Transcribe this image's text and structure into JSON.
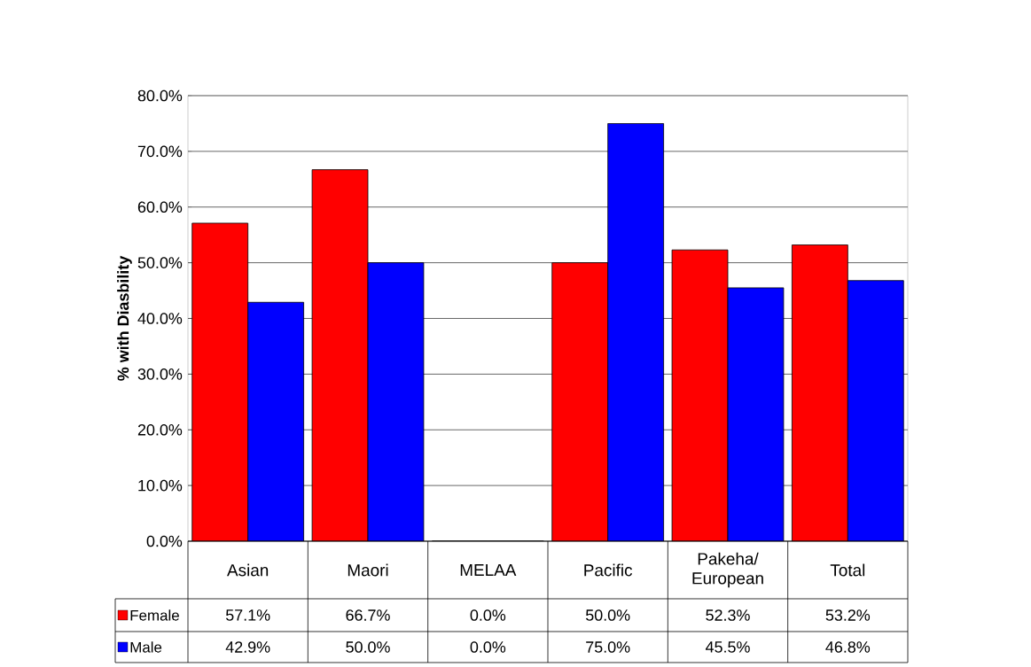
{
  "chart_data": {
    "type": "bar",
    "ylabel": "% with Diasbility",
    "categories": [
      "Asian",
      "Maori",
      "MELAA",
      "Pacific",
      "Pakeha/ European",
      "Total"
    ],
    "series": [
      {
        "name": "Female",
        "color": "#ff0000",
        "values": [
          57.1,
          66.7,
          0.0,
          50.0,
          52.3,
          53.2
        ],
        "value_labels": [
          "57.1%",
          "66.7%",
          "0.0%",
          "50.0%",
          "52.3%",
          "53.2%"
        ]
      },
      {
        "name": "Male",
        "color": "#0000ff",
        "values": [
          42.9,
          50.0,
          0.0,
          75.0,
          45.5,
          46.8
        ],
        "value_labels": [
          "42.9%",
          "50.0%",
          "0.0%",
          "75.0%",
          "45.5%",
          "46.8%"
        ]
      }
    ],
    "ylim": [
      0,
      80
    ],
    "yticks": [
      {
        "value": 0,
        "label": "0.0%"
      },
      {
        "value": 10,
        "label": "10.0%"
      },
      {
        "value": 20,
        "label": "20.0%"
      },
      {
        "value": 30,
        "label": "30.0%"
      },
      {
        "value": 40,
        "label": "40.0%"
      },
      {
        "value": 50,
        "label": "50.0%"
      },
      {
        "value": 60,
        "label": "60.0%"
      },
      {
        "value": 70,
        "label": "70.0%"
      },
      {
        "value": 80,
        "label": "80.0%"
      }
    ],
    "grid": "y",
    "legend": "bottom"
  }
}
